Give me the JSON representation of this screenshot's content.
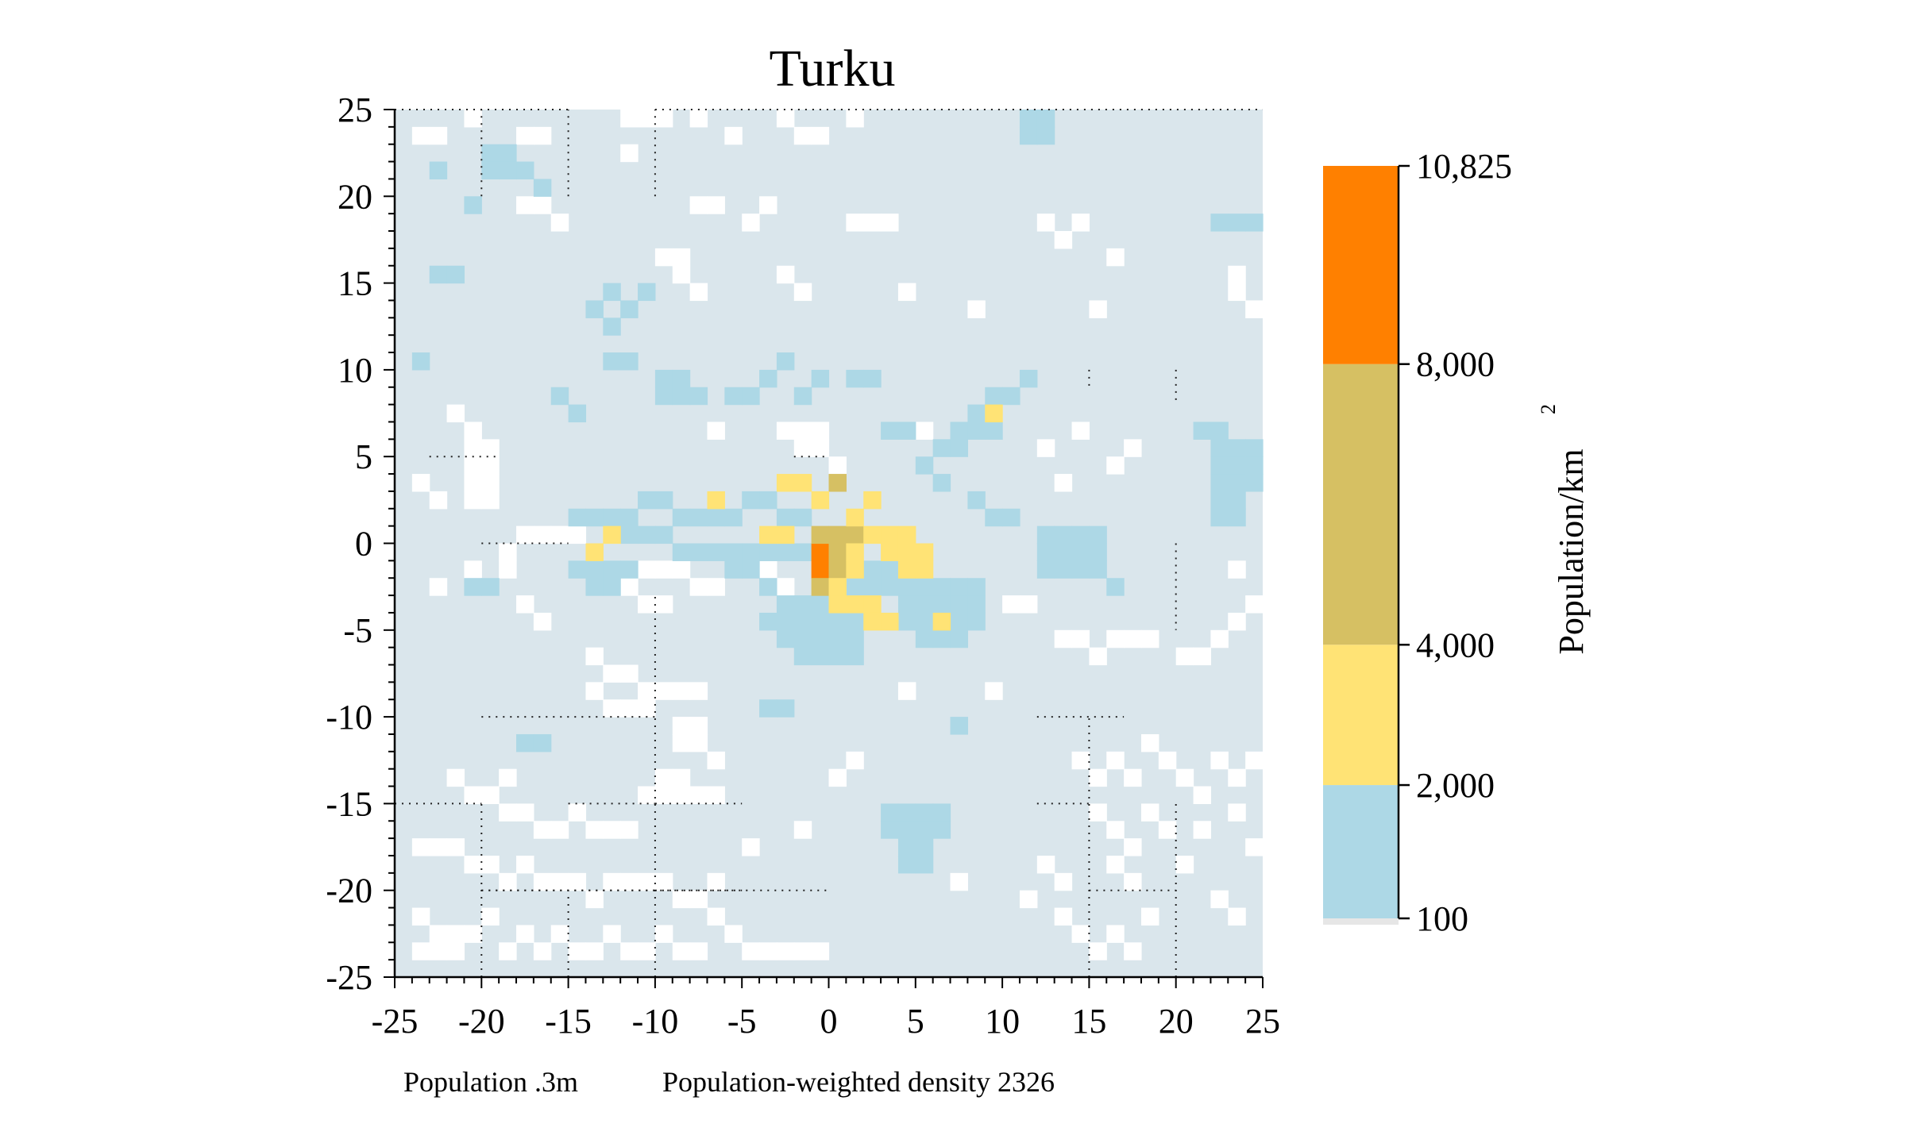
{
  "chart_data": {
    "type": "heatmap",
    "title": "Turku",
    "xlim": [
      -25,
      25
    ],
    "ylim": [
      -25,
      25
    ],
    "x_ticks": [
      -25,
      -20,
      -15,
      -10,
      -5,
      0,
      5,
      10,
      15,
      20,
      25
    ],
    "y_ticks": [
      -25,
      -20,
      -15,
      -10,
      -5,
      0,
      5,
      10,
      15,
      20,
      25
    ],
    "x_tick_labels": [
      "-25",
      "-20",
      "-15",
      "-10",
      "-5",
      "0",
      "5",
      "10",
      "15",
      "20",
      "25"
    ],
    "y_tick_labels": [
      "-25",
      "-20",
      "-15",
      "-10",
      "-5",
      "0",
      "5",
      "10",
      "15",
      "20",
      "25"
    ],
    "grid": true,
    "cell_size_km": 1,
    "colorbar": {
      "label": "Population/km",
      "label_superscript": "2",
      "boundaries": [
        100,
        2000,
        4000,
        8000,
        10825
      ],
      "tick_labels": [
        "100",
        "2,000",
        "4,000",
        "8,000",
        "10,825"
      ],
      "bins": [
        {
          "min": 0,
          "max": 100,
          "color": "#e6e6e6"
        },
        {
          "min": 100,
          "max": 2000,
          "color": "#add8e6"
        },
        {
          "min": 2000,
          "max": 4000,
          "color": "#ffe375"
        },
        {
          "min": 4000,
          "max": 8000,
          "color": "#d6c063"
        },
        {
          "min": 8000,
          "max": 10825,
          "color": "#ff8000"
        }
      ]
    },
    "light_fill_color": "#dae6ec",
    "cells": [
      {
        "x": -1,
        "y": -2,
        "value": 9500
      },
      {
        "x": -1,
        "y": -1,
        "value": 9500
      },
      {
        "x": 0,
        "y": 3,
        "value": 5000
      },
      {
        "x": -1,
        "y": 0,
        "value": 5000
      },
      {
        "x": 0,
        "y": 0,
        "value": 5000
      },
      {
        "x": 0,
        "y": -1,
        "value": 5000
      },
      {
        "x": 0,
        "y": -2,
        "value": 5000
      },
      {
        "x": -1,
        "y": -3,
        "value": 5000
      },
      {
        "x": 1,
        "y": 0,
        "value": 5000
      },
      {
        "x": -3,
        "y": 3,
        "value": 3000
      },
      {
        "x": -2,
        "y": 3,
        "value": 3000
      },
      {
        "x": -1,
        "y": 2,
        "value": 3000
      },
      {
        "x": -7,
        "y": 2,
        "value": 3000
      },
      {
        "x": 1,
        "y": 1,
        "value": 3000
      },
      {
        "x": 2,
        "y": 2,
        "value": 3000
      },
      {
        "x": -4,
        "y": 0,
        "value": 3000
      },
      {
        "x": -3,
        "y": 0,
        "value": 3000
      },
      {
        "x": -13,
        "y": 0,
        "value": 3000
      },
      {
        "x": -14,
        "y": -1,
        "value": 3000
      },
      {
        "x": 1,
        "y": -1,
        "value": 3000
      },
      {
        "x": 2,
        "y": 0,
        "value": 3000
      },
      {
        "x": 3,
        "y": 0,
        "value": 3000
      },
      {
        "x": 4,
        "y": 0,
        "value": 3000
      },
      {
        "x": 3,
        "y": -1,
        "value": 3000
      },
      {
        "x": 4,
        "y": -1,
        "value": 3000
      },
      {
        "x": 5,
        "y": -1,
        "value": 3000
      },
      {
        "x": 4,
        "y": -2,
        "value": 3000
      },
      {
        "x": 5,
        "y": -2,
        "value": 3000
      },
      {
        "x": 1,
        "y": -2,
        "value": 3000
      },
      {
        "x": 0,
        "y": -3,
        "value": 3000
      },
      {
        "x": 0,
        "y": -4,
        "value": 3000
      },
      {
        "x": 1,
        "y": -4,
        "value": 3000
      },
      {
        "x": 2,
        "y": -4,
        "value": 3000
      },
      {
        "x": 2,
        "y": -5,
        "value": 3000
      },
      {
        "x": 3,
        "y": -5,
        "value": 3000
      },
      {
        "x": 6,
        "y": -5,
        "value": 3000
      },
      {
        "x": 9,
        "y": 7,
        "value": 3000
      }
    ]
  },
  "footer": {
    "population": "Population .3m",
    "density": "Population-weighted density 2326"
  }
}
